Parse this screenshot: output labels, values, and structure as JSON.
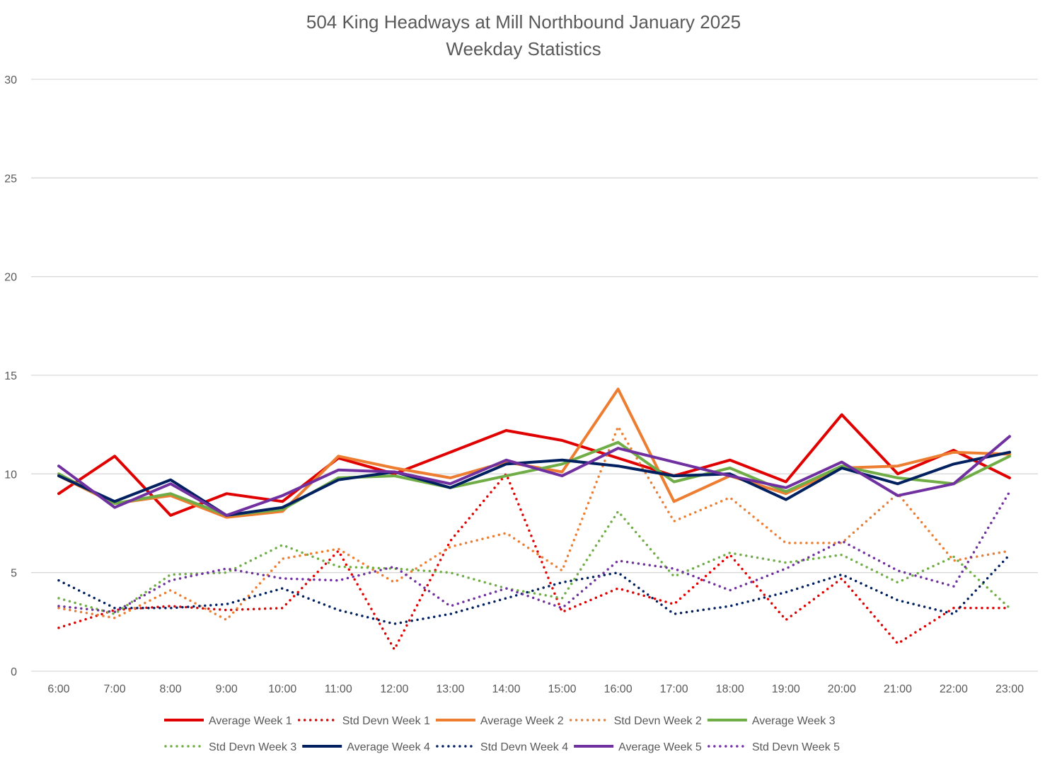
{
  "chart_data": {
    "type": "line",
    "title": "504 King Headways at Mill Northbound January 2025",
    "subtitle": "Weekday Statistics",
    "xlabel": "",
    "ylabel": "",
    "ylim": [
      0,
      30
    ],
    "yticks": [
      "0",
      "5",
      "10",
      "15",
      "20",
      "25",
      "30"
    ],
    "grid": "horizontal",
    "legend_position": "bottom",
    "categories": [
      "6:00",
      "7:00",
      "8:00",
      "9:00",
      "10:00",
      "11:00",
      "12:00",
      "13:00",
      "14:00",
      "15:00",
      "16:00",
      "17:00",
      "18:00",
      "19:00",
      "20:00",
      "21:00",
      "22:00",
      "23:00"
    ],
    "series": [
      {
        "name": "Average Week 1",
        "color": "#e00000",
        "style": "solid",
        "values": [
          9.0,
          10.9,
          7.9,
          9.0,
          8.6,
          10.8,
          10.0,
          11.1,
          12.2,
          11.7,
          10.8,
          9.9,
          10.7,
          9.6,
          13.0,
          10.0,
          11.2,
          9.8
        ]
      },
      {
        "name": "Std Devn Week 1",
        "color": "#e00000",
        "style": "dotted",
        "values": [
          2.2,
          3.1,
          3.3,
          3.1,
          3.2,
          6.1,
          1.1,
          6.6,
          10.0,
          3.0,
          4.2,
          3.4,
          5.9,
          2.6,
          4.7,
          1.4,
          3.2,
          3.2
        ]
      },
      {
        "name": "Average Week 2",
        "color": "#ed7d31",
        "style": "solid",
        "values": [
          9.9,
          8.5,
          8.9,
          7.8,
          8.1,
          10.9,
          10.3,
          9.8,
          10.6,
          10.1,
          14.3,
          8.6,
          9.9,
          9.0,
          10.3,
          10.4,
          11.1,
          11.0
        ]
      },
      {
        "name": "Std Devn Week 2",
        "color": "#ed7d31",
        "style": "dotted",
        "values": [
          3.2,
          2.7,
          4.1,
          2.6,
          5.7,
          6.2,
          4.5,
          6.3,
          7.0,
          5.1,
          12.4,
          7.6,
          8.8,
          6.5,
          6.5,
          9.0,
          5.6,
          6.1
        ]
      },
      {
        "name": "Average Week 3",
        "color": "#70ad47",
        "style": "solid",
        "values": [
          10.0,
          8.5,
          9.0,
          7.9,
          8.2,
          9.8,
          9.9,
          9.3,
          9.9,
          10.5,
          11.6,
          9.6,
          10.3,
          9.1,
          10.4,
          9.8,
          9.5,
          10.9
        ]
      },
      {
        "name": "Std Devn Week 3",
        "color": "#70ad47",
        "style": "dotted",
        "values": [
          3.7,
          2.9,
          4.9,
          5.0,
          6.4,
          5.3,
          5.2,
          5.0,
          4.2,
          3.7,
          8.1,
          4.8,
          6.0,
          5.5,
          5.9,
          4.5,
          5.8,
          3.2
        ]
      },
      {
        "name": "Average Week 4",
        "color": "#002060",
        "style": "solid",
        "values": [
          9.9,
          8.6,
          9.7,
          7.9,
          8.3,
          9.7,
          10.1,
          9.3,
          10.5,
          10.7,
          10.4,
          9.9,
          10.0,
          8.7,
          10.3,
          9.5,
          10.5,
          11.1
        ]
      },
      {
        "name": "Std Devn Week 4",
        "color": "#002060",
        "style": "dotted",
        "values": [
          4.6,
          3.2,
          3.2,
          3.4,
          4.2,
          3.1,
          2.4,
          2.9,
          3.7,
          4.5,
          5.0,
          2.9,
          3.3,
          4.0,
          4.9,
          3.6,
          2.9,
          5.9
        ]
      },
      {
        "name": "Average Week 5",
        "color": "#7030a0",
        "style": "solid",
        "values": [
          10.4,
          8.3,
          9.5,
          7.9,
          8.9,
          10.2,
          10.1,
          9.5,
          10.7,
          9.9,
          11.3,
          10.6,
          9.9,
          9.3,
          10.6,
          8.9,
          9.5,
          11.9
        ]
      },
      {
        "name": "Std Devn Week 5",
        "color": "#7030a0",
        "style": "dotted",
        "values": [
          3.3,
          3.0,
          4.6,
          5.2,
          4.7,
          4.6,
          5.3,
          3.3,
          4.2,
          3.2,
          5.6,
          5.2,
          4.1,
          5.2,
          6.6,
          5.1,
          4.3,
          9.1
        ]
      }
    ]
  }
}
